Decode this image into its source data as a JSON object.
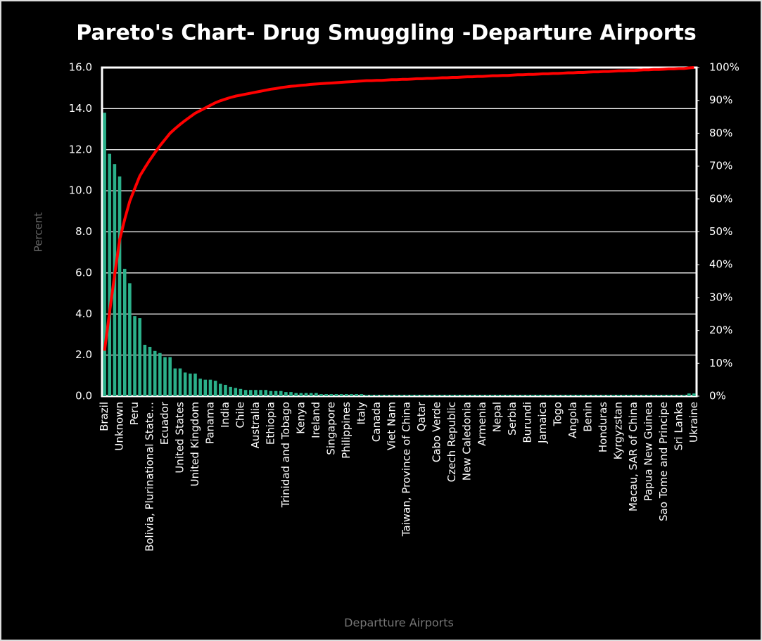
{
  "chart_data": {
    "type": "bar",
    "title": "Pareto's Chart- Drug Smuggling -Departure Airports",
    "y_label": "Percent",
    "x_label": "Departture Airports",
    "categories": [
      "Brazil",
      null,
      null,
      "Unknown",
      null,
      null,
      "Peru",
      null,
      null,
      "Bolivia, Plurinational State…",
      null,
      null,
      "Ecuador",
      null,
      null,
      "United States",
      null,
      null,
      "United Kingdom",
      null,
      null,
      "Panama",
      null,
      null,
      "India",
      null,
      null,
      "Chile",
      null,
      null,
      "Australia",
      null,
      null,
      "Ethiopia",
      null,
      null,
      "Trinidad and Tobago",
      null,
      null,
      "Kenya",
      null,
      null,
      "Ireland",
      null,
      null,
      "Singapore",
      null,
      null,
      "Philippines",
      null,
      null,
      "Italy",
      null,
      null,
      "Canada",
      null,
      null,
      "Viet Nam",
      null,
      null,
      "Taiwan, Province of China",
      null,
      null,
      "Qatar",
      null,
      null,
      "Cabo Verde",
      null,
      null,
      "Czech Republic",
      null,
      null,
      "New Caledonia",
      null,
      null,
      "Armenia",
      null,
      null,
      "Nepal",
      null,
      null,
      "Serbia",
      null,
      null,
      "Burundi",
      null,
      null,
      "Jamaica",
      null,
      null,
      "Togo",
      null,
      null,
      "Angola",
      null,
      null,
      "Benin",
      null,
      null,
      "Honduras",
      null,
      null,
      "Kyrgyzstan",
      null,
      null,
      "Macau, SAR of China",
      null,
      null,
      "Papua New Guinea",
      null,
      null,
      "Sao Tome and Principe",
      null,
      null,
      "Sri Lanka",
      null,
      null,
      "Ukraine"
    ],
    "series": [
      {
        "type": "bar",
        "color": "#2bb08a",
        "values": [
          13.8,
          11.8,
          11.3,
          10.7,
          6.2,
          5.5,
          3.9,
          3.8,
          2.5,
          2.4,
          2.2,
          2.1,
          1.9,
          1.9,
          1.35,
          1.35,
          1.15,
          1.1,
          1.1,
          0.85,
          0.8,
          0.8,
          0.75,
          0.6,
          0.55,
          0.45,
          0.4,
          0.35,
          0.3,
          0.3,
          0.3,
          0.3,
          0.3,
          0.25,
          0.25,
          0.25,
          0.2,
          0.2,
          0.15,
          0.15,
          0.15,
          0.15,
          0.15,
          0.1,
          0.1,
          0.1,
          0.1,
          0.1,
          0.1,
          0.1,
          0.1,
          0.1,
          0.06,
          0.06,
          0.06,
          0.06,
          0.06,
          0.06,
          0.06,
          0.06,
          0.06,
          0.06,
          0.06,
          0.06,
          0.06,
          0.06,
          0.06,
          0.06,
          0.06,
          0.06,
          0.06,
          0.06,
          0.06,
          0.06,
          0.06,
          0.06,
          0.06,
          0.06,
          0.06,
          0.06,
          0.06,
          0.06,
          0.06,
          0.06,
          0.06,
          0.06,
          0.06,
          0.06,
          0.06,
          0.06,
          0.06,
          0.06,
          0.06,
          0.06,
          0.06,
          0.06,
          0.06,
          0.06,
          0.06,
          0.06,
          0.06,
          0.06,
          0.06,
          0.06,
          0.06,
          0.06,
          0.06,
          0.06,
          0.06,
          0.06,
          0.06,
          0.06,
          0.06,
          0.06,
          0.06,
          0.06,
          0.13,
          0.13
        ]
      },
      {
        "type": "line",
        "axis": "y2",
        "color": "#ff0000",
        "values": [
          13.8,
          25.6,
          36.9,
          47.6,
          53.8,
          59.3,
          63.2,
          67.0,
          69.5,
          71.9,
          74.1,
          76.2,
          78.1,
          80.0,
          81.4,
          82.7,
          83.9,
          85.0,
          86.1,
          86.9,
          87.7,
          88.5,
          89.3,
          89.9,
          90.4,
          90.9,
          91.3,
          91.6,
          91.9,
          92.2,
          92.5,
          92.8,
          93.1,
          93.4,
          93.6,
          93.9,
          94.1,
          94.3,
          94.4,
          94.6,
          94.7,
          94.9,
          95.0,
          95.1,
          95.2,
          95.3,
          95.4,
          95.5,
          95.6,
          95.7,
          95.8,
          95.9,
          96.0,
          96.0,
          96.1,
          96.1,
          96.2,
          96.3,
          96.3,
          96.4,
          96.4,
          96.5,
          96.6,
          96.6,
          96.7,
          96.7,
          96.8,
          96.9,
          96.9,
          97.0,
          97.0,
          97.1,
          97.2,
          97.2,
          97.3,
          97.3,
          97.4,
          97.5,
          97.5,
          97.6,
          97.6,
          97.7,
          97.8,
          97.8,
          97.9,
          97.9,
          98.0,
          98.1,
          98.1,
          98.2,
          98.2,
          98.3,
          98.4,
          98.4,
          98.5,
          98.5,
          98.6,
          98.7,
          98.7,
          98.8,
          98.8,
          98.9,
          99.0,
          99.0,
          99.1,
          99.1,
          99.2,
          99.3,
          99.3,
          99.4,
          99.4,
          99.5,
          99.6,
          99.6,
          99.7,
          99.7,
          99.9,
          100.0
        ]
      }
    ],
    "ylim": [
      0,
      16
    ],
    "yticks": [
      {
        "value": 0,
        "label": "0.0"
      },
      {
        "value": 2,
        "label": "2.0"
      },
      {
        "value": 4,
        "label": "4.0"
      },
      {
        "value": 6,
        "label": "6.0"
      },
      {
        "value": 8,
        "label": "8.0"
      },
      {
        "value": 10,
        "label": "10.0"
      },
      {
        "value": 12,
        "label": "12.0"
      },
      {
        "value": 14,
        "label": "14.0"
      },
      {
        "value": 16,
        "label": "16.0"
      }
    ],
    "y2lim": [
      0,
      100
    ],
    "y2ticks": [
      {
        "value": 0,
        "label": "0%"
      },
      {
        "value": 10,
        "label": "10%"
      },
      {
        "value": 20,
        "label": "20%"
      },
      {
        "value": 30,
        "label": "30%"
      },
      {
        "value": 40,
        "label": "40%"
      },
      {
        "value": 50,
        "label": "50%"
      },
      {
        "value": 60,
        "label": "60%"
      },
      {
        "value": 70,
        "label": "70%"
      },
      {
        "value": 80,
        "label": "80%"
      },
      {
        "value": 90,
        "label": "90%"
      },
      {
        "value": 100,
        "label": "100%"
      }
    ],
    "grid": true
  }
}
